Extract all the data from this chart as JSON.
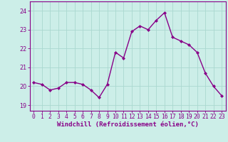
{
  "x": [
    0,
    1,
    2,
    3,
    4,
    5,
    6,
    7,
    8,
    9,
    10,
    11,
    12,
    13,
    14,
    15,
    16,
    17,
    18,
    19,
    20,
    21,
    22,
    23
  ],
  "y": [
    20.2,
    20.1,
    19.8,
    19.9,
    20.2,
    20.2,
    20.1,
    19.8,
    19.4,
    20.1,
    21.8,
    21.5,
    22.9,
    23.2,
    23.0,
    23.5,
    23.9,
    22.6,
    22.4,
    22.2,
    21.8,
    20.7,
    20.0,
    19.5
  ],
  "line_color": "#880088",
  "marker": "D",
  "marker_size": 2.0,
  "bg_color": "#cceee8",
  "grid_color": "#aad8d0",
  "xlabel": "Windchill (Refroidissement éolien,°C)",
  "xlabel_fontsize": 6.5,
  "xtick_labels": [
    "0",
    "1",
    "2",
    "3",
    "4",
    "5",
    "6",
    "7",
    "8",
    "9",
    "10",
    "11",
    "12",
    "13",
    "14",
    "15",
    "16",
    "17",
    "18",
    "19",
    "20",
    "21",
    "22",
    "23"
  ],
  "ytick_values": [
    19,
    20,
    21,
    22,
    23,
    24
  ],
  "ylim": [
    18.7,
    24.5
  ],
  "xlim": [
    -0.5,
    23.5
  ],
  "tick_fontsize": 5.8,
  "line_width": 1.0,
  "spine_color": "#880088",
  "tick_color": "#880088"
}
